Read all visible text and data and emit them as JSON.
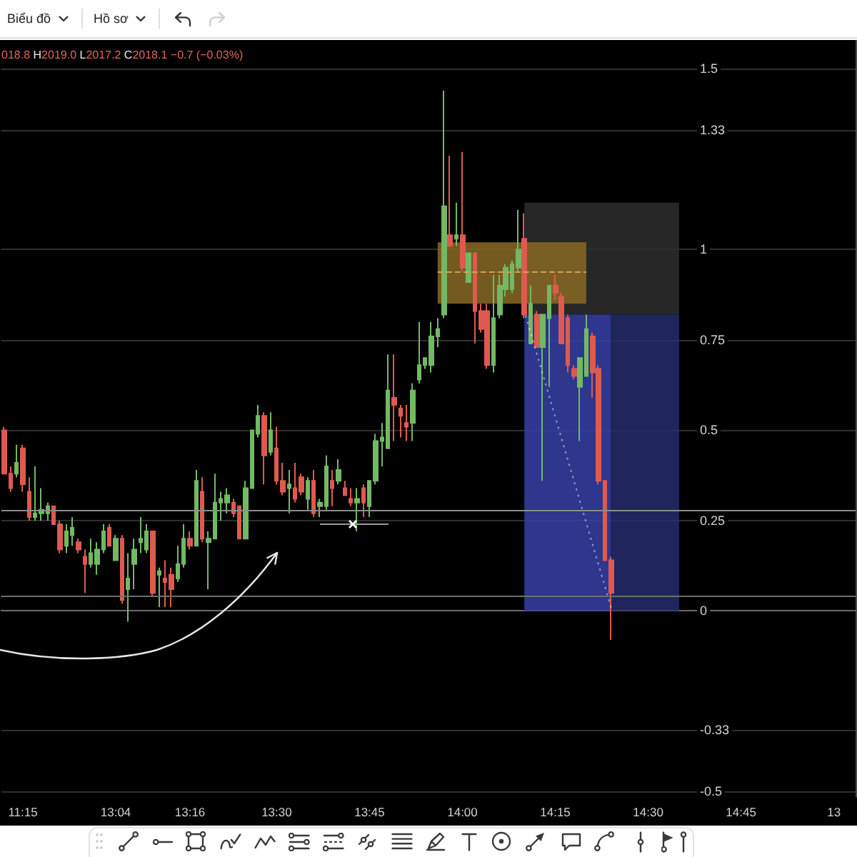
{
  "chart_data": {
    "type": "candlestick",
    "subtitle": "018.8 H2019.0 L2017.2 C2018.1 −0.7 (−0.03%)",
    "annotations": [
      "Biểu đồ",
      "Hồ sơ"
    ],
    "categories": [
      null,
      null,
      null,
      "11:15",
      null,
      null,
      null,
      null,
      null,
      null,
      null,
      null,
      null,
      null,
      null,
      null,
      null,
      null,
      "13:04",
      null,
      null,
      null,
      null,
      null,
      null,
      null,
      null,
      null,
      null,
      null,
      "13:16",
      null,
      null,
      null,
      null,
      null,
      null,
      null,
      null,
      null,
      null,
      null,
      null,
      null,
      "13:30",
      null,
      null,
      null,
      null,
      null,
      null,
      null,
      null,
      null,
      null,
      null,
      null,
      null,
      null,
      "13:45",
      null,
      null,
      null,
      null,
      null,
      null,
      null,
      null,
      null,
      null,
      null,
      null,
      null,
      null,
      "14:00",
      null,
      null,
      null,
      null,
      null,
      null,
      null,
      null,
      null,
      null,
      null,
      null,
      null,
      null,
      "14:15",
      null,
      null,
      null,
      null,
      null,
      null,
      null,
      null,
      null,
      null,
      null,
      null,
      null,
      null,
      "14:30",
      null,
      null,
      null,
      null,
      null,
      null,
      null,
      null,
      null,
      null,
      null,
      null,
      null,
      null,
      "14:45",
      null,
      null,
      null,
      null,
      null,
      null,
      null,
      null,
      null,
      null,
      null,
      null,
      null,
      null,
      "13",
      null,
      null,
      null
    ],
    "ohlc": [
      [
        0.5,
        0.51,
        0.38,
        0.38
      ],
      [
        0.38,
        0.4,
        0.33,
        0.34
      ],
      [
        0.38,
        0.46,
        0.37,
        0.41
      ],
      [
        0.45,
        0.46,
        0.33,
        0.35
      ],
      [
        0.33,
        0.37,
        0.25,
        0.26
      ],
      [
        0.26,
        0.4,
        0.25,
        0.27
      ],
      [
        0.27,
        0.34,
        0.25,
        0.28
      ],
      [
        0.27,
        0.3,
        0.25,
        0.29
      ],
      [
        0.29,
        0.29,
        0.24,
        0.24
      ],
      [
        0.24,
        0.25,
        0.16,
        0.17
      ],
      [
        0.18,
        0.24,
        0.16,
        0.22
      ],
      [
        0.21,
        0.26,
        0.18,
        0.23
      ],
      [
        0.19,
        0.2,
        0.16,
        0.17
      ],
      [
        0.15,
        0.17,
        0.05,
        0.13
      ],
      [
        0.13,
        0.2,
        0.12,
        0.16
      ],
      [
        0.13,
        0.19,
        0.1,
        0.17
      ],
      [
        0.17,
        0.24,
        0.16,
        0.22
      ],
      [
        0.23,
        0.24,
        0.18,
        0.18
      ],
      [
        0.14,
        0.21,
        0.14,
        0.2
      ],
      [
        0.2,
        0.21,
        0.02,
        0.03
      ],
      [
        0.06,
        0.16,
        -0.03,
        0.09
      ],
      [
        0.13,
        0.2,
        0.06,
        0.17
      ],
      [
        0.19,
        0.26,
        0.16,
        0.2
      ],
      [
        0.17,
        0.24,
        0.16,
        0.22
      ],
      [
        0.22,
        0.22,
        0.04,
        0.05
      ],
      [
        0.1,
        0.12,
        0.01,
        0.11
      ],
      [
        0.09,
        0.14,
        0.01,
        0.08
      ],
      [
        0.1,
        0.12,
        0.01,
        0.06
      ],
      [
        0.09,
        0.18,
        0.08,
        0.13
      ],
      [
        0.13,
        0.24,
        0.12,
        0.2
      ],
      [
        0.2,
        0.22,
        0.17,
        0.18
      ],
      [
        0.18,
        0.39,
        0.18,
        0.36
      ],
      [
        0.33,
        0.37,
        0.19,
        0.2
      ],
      [
        0.19,
        0.22,
        0.06,
        0.2
      ],
      [
        0.2,
        0.38,
        0.2,
        0.3
      ],
      [
        0.3,
        0.33,
        0.25,
        0.31
      ],
      [
        0.3,
        0.34,
        0.27,
        0.32
      ],
      [
        0.3,
        0.31,
        0.26,
        0.27
      ],
      [
        0.29,
        0.29,
        0.2,
        0.2
      ],
      [
        0.2,
        0.36,
        0.2,
        0.34
      ],
      [
        0.34,
        0.5,
        0.34,
        0.5
      ],
      [
        0.49,
        0.57,
        0.48,
        0.54
      ],
      [
        0.54,
        0.55,
        0.35,
        0.43
      ],
      [
        0.44,
        0.55,
        0.43,
        0.5
      ],
      [
        0.45,
        0.51,
        0.35,
        0.36
      ],
      [
        0.36,
        0.41,
        0.32,
        0.33
      ],
      [
        0.34,
        0.39,
        0.27,
        0.35
      ],
      [
        0.34,
        0.41,
        0.3,
        0.31
      ],
      [
        0.37,
        0.38,
        0.32,
        0.33
      ],
      [
        0.31,
        0.37,
        0.28,
        0.36
      ],
      [
        0.36,
        0.39,
        0.26,
        0.27
      ],
      [
        0.29,
        0.31,
        0.26,
        0.3
      ],
      [
        0.29,
        0.43,
        0.28,
        0.4
      ],
      [
        0.36,
        0.39,
        0.29,
        0.34
      ],
      [
        0.36,
        0.42,
        0.35,
        0.39
      ],
      [
        0.34,
        0.36,
        0.32,
        0.32
      ],
      [
        0.31,
        0.34,
        0.29,
        0.3
      ],
      [
        0.3,
        0.34,
        0.22,
        0.31
      ],
      [
        0.34,
        0.35,
        0.26,
        0.3
      ],
      [
        0.29,
        0.36,
        0.26,
        0.36
      ],
      [
        0.36,
        0.49,
        0.35,
        0.47
      ],
      [
        0.47,
        0.52,
        0.4,
        0.48
      ],
      [
        0.45,
        0.71,
        0.45,
        0.61
      ],
      [
        0.59,
        0.71,
        0.47,
        0.57
      ],
      [
        0.56,
        0.57,
        0.48,
        0.54
      ],
      [
        0.52,
        0.57,
        0.47,
        0.51
      ],
      [
        0.52,
        0.63,
        0.47,
        0.61
      ],
      [
        0.64,
        0.8,
        0.63,
        0.68
      ],
      [
        0.68,
        0.7,
        0.67,
        0.7
      ],
      [
        0.68,
        0.8,
        0.66,
        0.76
      ],
      [
        0.76,
        0.81,
        0.73,
        0.78
      ],
      [
        0.82,
        1.44,
        0.81,
        1.12
      ],
      [
        1.04,
        1.26,
        1.01,
        1.01
      ],
      [
        1.03,
        1.13,
        1.01,
        1.04
      ],
      [
        1.04,
        1.27,
        0.94,
        0.95
      ],
      [
        0.91,
        0.99,
        0.91,
        0.99
      ],
      [
        0.99,
        0.99,
        0.74,
        0.83
      ],
      [
        0.83,
        0.85,
        0.77,
        0.78
      ],
      [
        0.83,
        0.85,
        0.67,
        0.68
      ],
      [
        0.68,
        0.93,
        0.66,
        0.81
      ],
      [
        0.82,
        0.93,
        0.81,
        0.9
      ],
      [
        0.89,
        0.96,
        0.87,
        0.95
      ],
      [
        0.89,
        0.97,
        0.88,
        0.96
      ],
      [
        0.95,
        1.11,
        0.94,
        1.0
      ],
      [
        1.03,
        1.1,
        0.81,
        0.82
      ],
      [
        0.74,
        0.9,
        0.74,
        0.85
      ],
      [
        0.82,
        0.83,
        0.73,
        0.73
      ],
      [
        0.73,
        0.82,
        0.36,
        0.82
      ],
      [
        0.81,
        0.9,
        0.62,
        0.9
      ],
      [
        0.9,
        0.93,
        0.86,
        0.88
      ],
      [
        0.87,
        0.88,
        0.74,
        0.74
      ],
      [
        0.81,
        0.82,
        0.66,
        0.68
      ],
      [
        0.67,
        0.68,
        0.64,
        0.65
      ],
      [
        0.62,
        0.7,
        0.47,
        0.7
      ],
      [
        0.65,
        0.82,
        0.65,
        0.78
      ],
      [
        0.76,
        0.77,
        0.59,
        0.66
      ],
      [
        0.67,
        0.68,
        0.35,
        0.36
      ],
      [
        0.36,
        0.36,
        0.14,
        0.14
      ],
      [
        0.14,
        0.15,
        -0.08,
        0.05
      ],
      null,
      null,
      null,
      null,
      null,
      null,
      null,
      null,
      null,
      null,
      null,
      null,
      null,
      null,
      null,
      null,
      null,
      null,
      null,
      null,
      null,
      null,
      null,
      null,
      null,
      null,
      null,
      null,
      null,
      null,
      null,
      null,
      null,
      null,
      null,
      null,
      null,
      null,
      null
    ],
    "colors": [
      "#de5a4e",
      "#de5a4e",
      "#72b865",
      "#de5a4e",
      "#de5a4e",
      "#72b865",
      "#72b865",
      "#72b865",
      "#de5a4e",
      "#de5a4e",
      "#72b865",
      "#72b865",
      "#de5a4e",
      "#de5a4e",
      "#72b865",
      "#72b865",
      "#72b865",
      "#de5a4e",
      "#72b865",
      "#de5a4e",
      "#72b865",
      "#72b865",
      "#72b865",
      "#72b865",
      "#de5a4e",
      "#72b865",
      "#de5a4e",
      "#de5a4e",
      "#72b865",
      "#72b865",
      "#de5a4e",
      "#72b865",
      "#de5a4e",
      "#72b865",
      "#72b865",
      "#72b865",
      "#72b865",
      "#de5a4e",
      "#de5a4e",
      "#72b865",
      "#72b865",
      "#72b865",
      "#de5a4e",
      "#72b865",
      "#de5a4e",
      "#de5a4e",
      "#72b865",
      "#de5a4e",
      "#de5a4e",
      "#72b865",
      "#de5a4e",
      "#72b865",
      "#72b865",
      "#de5a4e",
      "#72b865",
      "#de5a4e",
      "#de5a4e",
      "#72b865",
      "#de5a4e",
      "#72b865",
      "#72b865",
      "#72b865",
      "#72b865",
      "#de5a4e",
      "#de5a4e",
      "#de5a4e",
      "#72b865",
      "#72b865",
      "#72b865",
      "#72b865",
      "#72b865",
      "#72b865",
      "#de5a4e",
      "#72b865",
      "#de5a4e",
      "#72b865",
      "#de5a4e",
      "#de5a4e",
      "#de5a4e",
      "#72b865",
      "#72b865",
      "#72b865",
      "#72b865",
      "#72b865",
      "#de5a4e",
      "#72b865",
      "#de5a4e",
      "#72b865",
      "#72b865",
      "#de5a4e",
      "#de5a4e",
      "#de5a4e",
      "#de5a4e",
      "#72b865",
      "#72b865",
      "#de5a4e",
      "#de5a4e",
      "#de5a4e",
      "#de5a4e",
      null,
      null,
      null,
      null,
      null,
      null,
      null,
      null,
      null,
      null,
      null,
      null,
      null,
      null,
      null,
      null,
      null,
      null,
      null,
      null,
      null,
      null,
      null,
      null,
      null,
      null,
      null,
      null,
      null,
      null,
      null,
      null,
      null,
      null,
      null,
      null,
      null,
      null,
      null
    ],
    "ylim": [
      -0.515,
      1.58
    ],
    "yticks": [
      -0.5,
      -0.33,
      0,
      0.25,
      0.5,
      0.75,
      1,
      1.33,
      1.5
    ],
    "grid": "y",
    "ref_lines": [
      {
        "axis": "y",
        "value": 0.28,
        "color": "#8c8c8c"
      },
      {
        "axis": "y",
        "value": 0.045,
        "color": "#6e6e6e"
      },
      {
        "axis": "y",
        "value": 0.94,
        "color": "#d4a24c",
        "line_style": "dashed"
      }
    ],
    "bands": [
      {
        "axis": "y",
        "from": 0.82,
        "to": 1.13,
        "color": "#2e2e2e"
      },
      {
        "axis": "y",
        "from": 0,
        "to": 0.82,
        "color": "#3640a6"
      },
      {
        "axis": "y",
        "from": 0,
        "to": 0.82,
        "color": "#262c6e"
      },
      {
        "axis": "y",
        "from": 0.85,
        "to": 1.02,
        "color": "#8a6a24"
      }
    ]
  }
}
